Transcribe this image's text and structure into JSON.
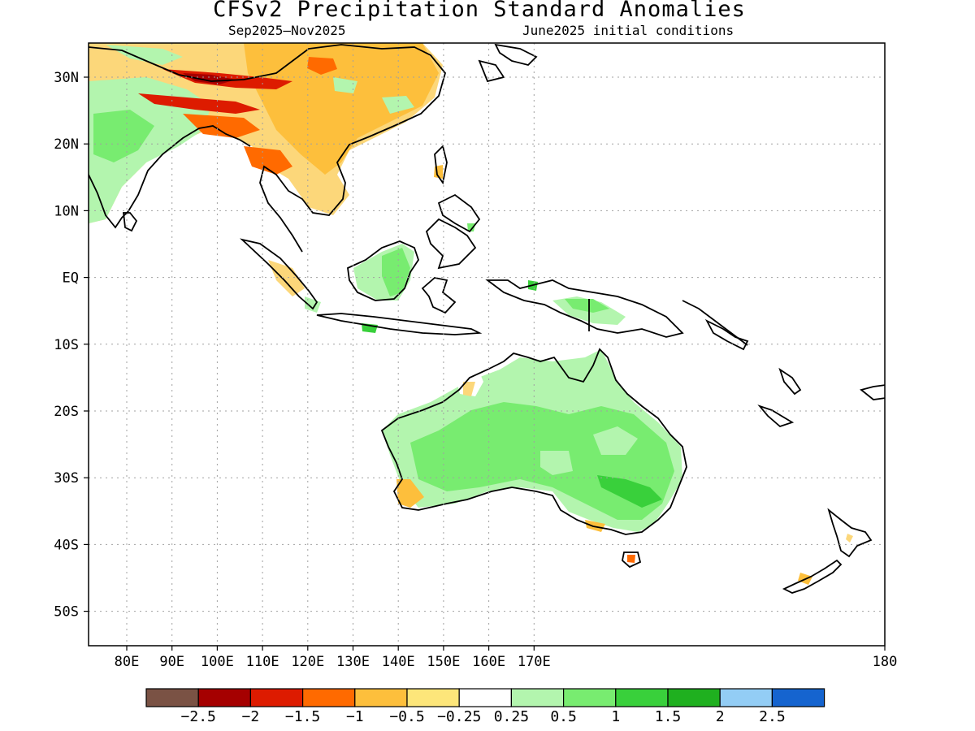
{
  "title": "CFSv2 Precipitation Standard Anomalies",
  "subtitle_left": "Sep2025–Nov2025",
  "subtitle_right": "June2025 initial conditions",
  "lat_ticks": [
    "30N",
    "20N",
    "10N",
    "EQ",
    "10S",
    "20S",
    "30S",
    "40S",
    "50S"
  ],
  "lon_ticks": [
    "80E",
    "90E",
    "100E",
    "110E",
    "120E",
    "130E",
    "140E",
    "150E",
    "160E",
    "170E",
    "180"
  ],
  "colorbar": {
    "colors": [
      "#7a5244",
      "#a50000",
      "#dd1b00",
      "#ff6a00",
      "#fdbf3c",
      "#fde67a",
      "#ffffff",
      "#b3f5ae",
      "#78ec70",
      "#39d03b",
      "#1fb01f",
      "#93cdf5",
      "#1564cf"
    ],
    "labels": [
      "−2.5",
      "−2",
      "−1.5",
      "−1",
      "−0.5",
      "−0.25",
      "0.25",
      "0.5",
      "1",
      "1.5",
      "2",
      "2.5"
    ]
  },
  "colors": {
    "land_outline": "#000000",
    "grid": "#a0a0a0"
  }
}
